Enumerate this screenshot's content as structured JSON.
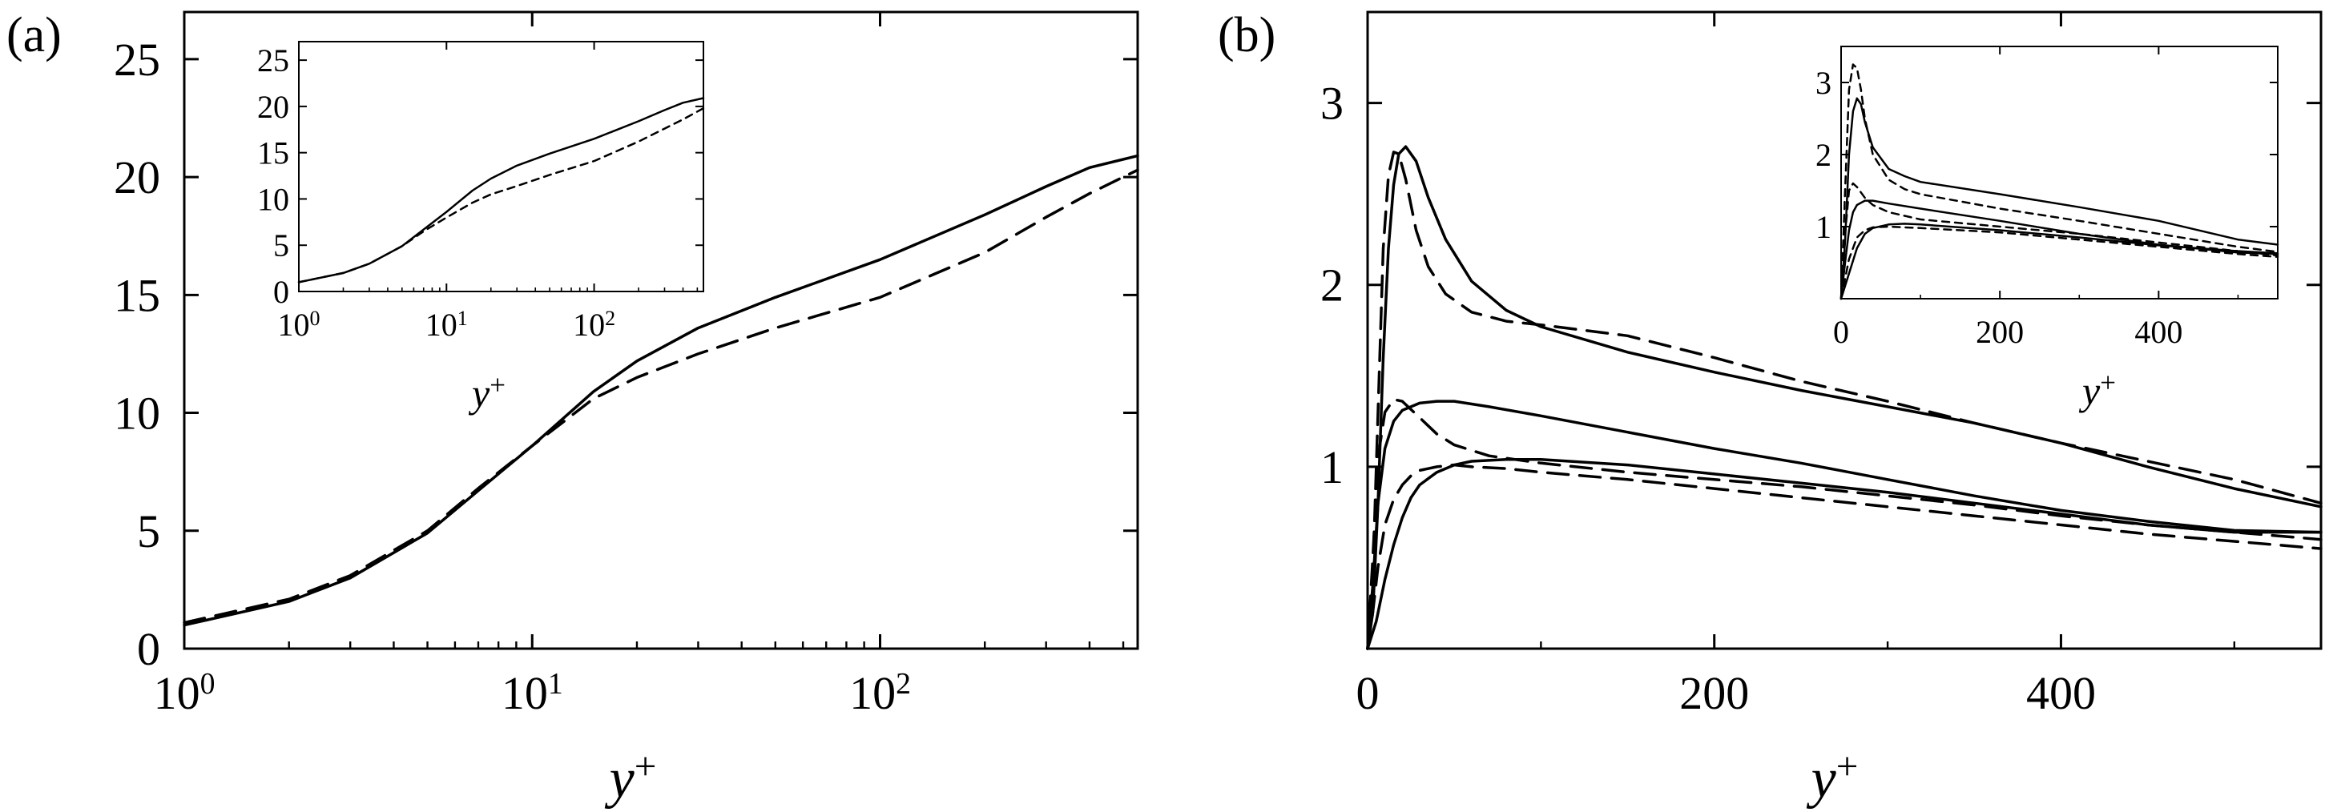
{
  "chart_data": [
    {
      "panel": "(a)",
      "type": "line",
      "xlabel": "y+",
      "xscale": "log",
      "xlim": [
        1,
        550
      ],
      "ylim": [
        0,
        27
      ],
      "xticks": [
        {
          "value": 1,
          "base": "10",
          "exp": "0"
        },
        {
          "value": 10,
          "base": "10",
          "exp": "1"
        },
        {
          "value": 100,
          "base": "10",
          "exp": "2"
        }
      ],
      "yticks": [
        0,
        5,
        10,
        15,
        20,
        25
      ],
      "series": [
        {
          "style": "solid",
          "x": [
            1,
            2,
            3,
            5,
            7,
            10,
            15,
            20,
            30,
            50,
            100,
            200,
            300,
            400,
            550
          ],
          "y": [
            1.0,
            2.0,
            3.0,
            4.9,
            6.7,
            8.6,
            10.9,
            12.2,
            13.6,
            14.9,
            16.5,
            18.4,
            19.6,
            20.4,
            20.9
          ]
        },
        {
          "style": "dashed",
          "x": [
            1,
            2,
            3,
            5,
            7,
            10,
            15,
            20,
            30,
            50,
            100,
            200,
            300,
            400,
            550
          ],
          "y": [
            1.1,
            2.1,
            3.1,
            5.0,
            6.8,
            8.6,
            10.6,
            11.5,
            12.5,
            13.6,
            14.9,
            16.8,
            18.3,
            19.3,
            20.3
          ]
        }
      ],
      "inset": {
        "xlabel": "y+",
        "xscale": "log",
        "xlim": [
          1,
          550
        ],
        "ylim": [
          0,
          27
        ],
        "xticks": [
          {
            "value": 1,
            "base": "10",
            "exp": "0"
          },
          {
            "value": 10,
            "base": "10",
            "exp": "1"
          },
          {
            "value": 100,
            "base": "10",
            "exp": "2"
          }
        ],
        "yticks": [
          0,
          5,
          10,
          15,
          20,
          25
        ],
        "series": [
          {
            "style": "solid",
            "x": [
              1,
              2,
              3,
              5,
              7,
              10,
              15,
              20,
              30,
              50,
              100,
              200,
              300,
              400,
              550
            ],
            "y": [
              1.0,
              2.0,
              3.0,
              4.9,
              6.7,
              8.6,
              10.9,
              12.2,
              13.6,
              14.9,
              16.5,
              18.4,
              19.6,
              20.4,
              20.9
            ]
          },
          {
            "style": "dotted",
            "x": [
              1,
              2,
              3,
              5,
              7,
              10,
              15,
              20,
              30,
              50,
              100,
              200,
              300,
              400,
              550
            ],
            "y": [
              1.0,
              2.0,
              3.0,
              4.9,
              6.5,
              8.0,
              9.6,
              10.5,
              11.4,
              12.6,
              14.1,
              16.2,
              17.6,
              18.6,
              19.8
            ]
          }
        ]
      }
    },
    {
      "panel": "(b)",
      "type": "line",
      "xlabel": "y+",
      "xlim": [
        0,
        550
      ],
      "ylim": [
        0,
        3.5
      ],
      "xticks": [
        0,
        200,
        400
      ],
      "yticks": [
        1,
        2,
        3
      ],
      "series": [
        {
          "style": "solid",
          "x": [
            0,
            3,
            6,
            9,
            12,
            15,
            18,
            22,
            28,
            35,
            45,
            60,
            80,
            100,
            150,
            200,
            250,
            300,
            350,
            400,
            450,
            500,
            550
          ],
          "y": [
            0,
            0.2,
            0.8,
            1.6,
            2.2,
            2.55,
            2.72,
            2.76,
            2.68,
            2.48,
            2.25,
            2.02,
            1.86,
            1.77,
            1.63,
            1.52,
            1.42,
            1.33,
            1.24,
            1.13,
            1.0,
            0.88,
            0.78
          ]
        },
        {
          "style": "dashed",
          "x": [
            0,
            3,
            6,
            9,
            12,
            15,
            18,
            22,
            28,
            35,
            45,
            60,
            80,
            100,
            150,
            200,
            250,
            300,
            350,
            400,
            450,
            500,
            550
          ],
          "y": [
            0,
            0.4,
            1.3,
            2.2,
            2.6,
            2.73,
            2.72,
            2.58,
            2.3,
            2.1,
            1.95,
            1.85,
            1.8,
            1.78,
            1.72,
            1.6,
            1.47,
            1.36,
            1.24,
            1.13,
            1.03,
            0.93,
            0.8
          ]
        },
        {
          "style": "solid",
          "x": [
            0,
            3,
            6,
            10,
            15,
            20,
            30,
            40,
            50,
            70,
            100,
            150,
            200,
            250,
            300,
            350,
            400,
            450,
            500,
            550
          ],
          "y": [
            0,
            0.35,
            0.8,
            1.1,
            1.25,
            1.31,
            1.35,
            1.36,
            1.36,
            1.33,
            1.28,
            1.19,
            1.1,
            1.02,
            0.93,
            0.84,
            0.76,
            0.7,
            0.65,
            0.64
          ]
        },
        {
          "style": "dashed",
          "x": [
            0,
            3,
            6,
            10,
            15,
            20,
            30,
            40,
            50,
            70,
            100,
            150,
            200,
            250,
            300,
            350,
            400,
            450,
            500,
            550
          ],
          "y": [
            0,
            0.5,
            1.05,
            1.3,
            1.37,
            1.36,
            1.27,
            1.18,
            1.12,
            1.06,
            1.02,
            0.97,
            0.93,
            0.89,
            0.84,
            0.79,
            0.73,
            0.68,
            0.64,
            0.6
          ]
        },
        {
          "style": "solid",
          "x": [
            0,
            5,
            10,
            15,
            20,
            25,
            30,
            40,
            50,
            60,
            80,
            100,
            150,
            200,
            250,
            300,
            350,
            400,
            450,
            500,
            550
          ],
          "y": [
            0,
            0.15,
            0.38,
            0.57,
            0.72,
            0.83,
            0.9,
            0.97,
            1.01,
            1.03,
            1.04,
            1.04,
            1.01,
            0.96,
            0.91,
            0.86,
            0.8,
            0.74,
            0.68,
            0.64,
            0.64
          ]
        },
        {
          "style": "dashed",
          "x": [
            0,
            3,
            6,
            10,
            15,
            20,
            25,
            30,
            40,
            50,
            60,
            80,
            100,
            150,
            200,
            250,
            300,
            350,
            400,
            450,
            500,
            550
          ],
          "y": [
            0,
            0.2,
            0.45,
            0.68,
            0.82,
            0.9,
            0.95,
            0.98,
            1.0,
            1.01,
            1.0,
            0.99,
            0.97,
            0.93,
            0.88,
            0.83,
            0.78,
            0.73,
            0.68,
            0.63,
            0.59,
            0.55
          ]
        }
      ],
      "inset": {
        "xlabel": "y+",
        "xlim": [
          0,
          550
        ],
        "ylim": [
          0,
          3.5
        ],
        "xticks": [
          0,
          200,
          400
        ],
        "yticks": [
          1,
          2,
          3
        ],
        "series": [
          {
            "style": "solid",
            "x": [
              0,
              5,
              10,
              15,
              20,
              25,
              30,
              40,
              60,
              80,
              100,
              200,
              300,
              400,
              500,
              550
            ],
            "y": [
              0,
              0.8,
              2.0,
              2.6,
              2.78,
              2.7,
              2.45,
              2.1,
              1.8,
              1.7,
              1.62,
              1.45,
              1.27,
              1.08,
              0.82,
              0.75
            ]
          },
          {
            "style": "dotted",
            "x": [
              0,
              5,
              10,
              15,
              20,
              25,
              30,
              40,
              60,
              80,
              100,
              200,
              300,
              400,
              500,
              550
            ],
            "y": [
              0,
              1.5,
              2.9,
              3.25,
              3.2,
              2.9,
              2.5,
              2.0,
              1.65,
              1.52,
              1.45,
              1.25,
              1.08,
              0.9,
              0.72,
              0.65
            ]
          },
          {
            "style": "solid",
            "x": [
              0,
              5,
              10,
              15,
              20,
              30,
              40,
              60,
              100,
              200,
              300,
              400,
              500,
              550
            ],
            "y": [
              0,
              0.5,
              0.95,
              1.2,
              1.3,
              1.36,
              1.36,
              1.32,
              1.25,
              1.08,
              0.9,
              0.75,
              0.64,
              0.62
            ]
          },
          {
            "style": "dotted",
            "x": [
              0,
              5,
              10,
              15,
              20,
              30,
              40,
              60,
              100,
              200,
              300,
              400,
              500,
              550
            ],
            "y": [
              0,
              0.9,
              1.5,
              1.6,
              1.55,
              1.4,
              1.3,
              1.2,
              1.1,
              1.0,
              0.9,
              0.78,
              0.66,
              0.6
            ]
          },
          {
            "style": "solid",
            "x": [
              0,
              10,
              20,
              30,
              40,
              60,
              80,
              100,
              200,
              300,
              400,
              500,
              550
            ],
            "y": [
              0,
              0.35,
              0.7,
              0.9,
              0.98,
              1.03,
              1.04,
              1.03,
              0.95,
              0.85,
              0.74,
              0.66,
              0.63
            ]
          },
          {
            "style": "dotted",
            "x": [
              0,
              10,
              20,
              30,
              40,
              60,
              80,
              100,
              200,
              300,
              400,
              500,
              550
            ],
            "y": [
              0,
              0.55,
              0.85,
              0.95,
              0.99,
              1.0,
              0.99,
              0.98,
              0.92,
              0.82,
              0.72,
              0.62,
              0.58
            ]
          }
        ]
      }
    }
  ]
}
